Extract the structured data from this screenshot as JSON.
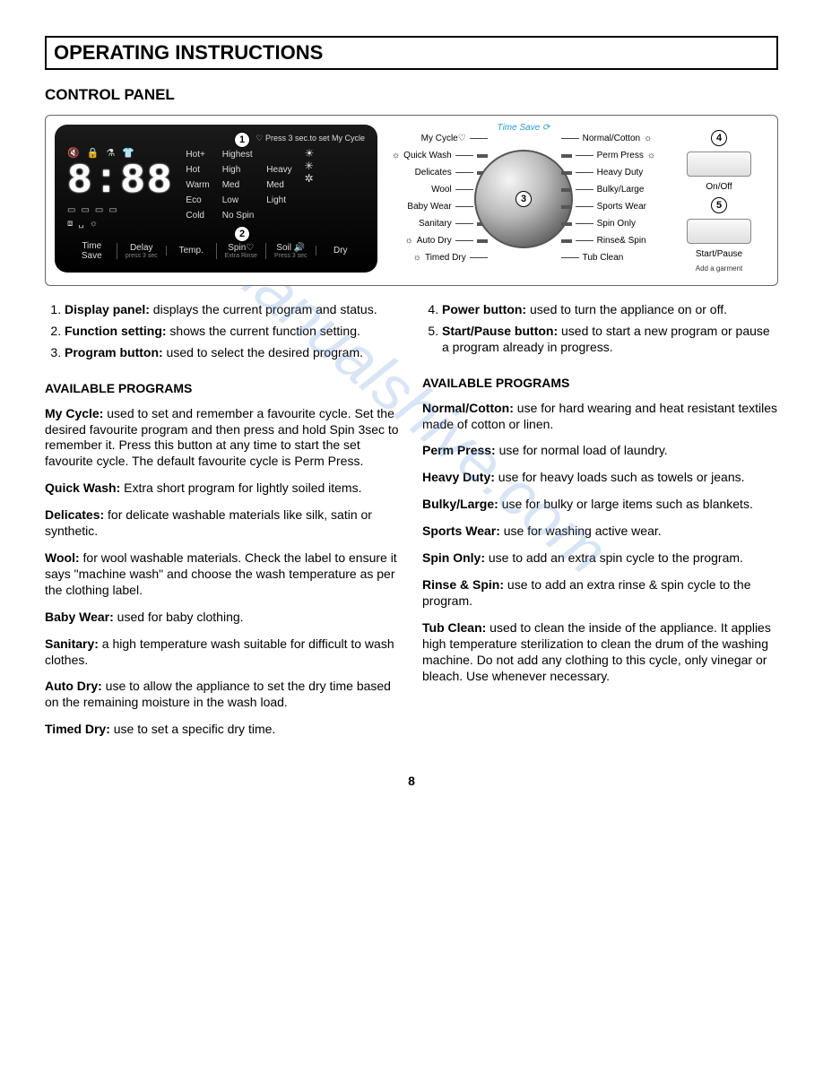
{
  "header": {
    "title": "OPERATING INSTRUCTIONS"
  },
  "subheading": "CONTROL PANEL",
  "panel": {
    "lcd": {
      "mycycle_hint": "♡ Press 3 sec.to set My Cycle",
      "segments": "8:88",
      "temp_labels": [
        "Hot+",
        "Hot",
        "Warm",
        "Eco",
        "Cold"
      ],
      "spin_labels": [
        "Highest",
        "High",
        "Med",
        "Low",
        "No Spin"
      ],
      "soil_labels": [
        "Heavy",
        "Med",
        "Light"
      ],
      "bottom": {
        "time_save": "Time Save",
        "delay": "Delay",
        "temp": "Temp.",
        "spin": "Spin♡",
        "soil": "Soil 🔊",
        "dry": "Dry",
        "press3_1": "press 3 sec",
        "extra_rinse": "Extra\nRinse",
        "press3_2": "Press 3 sec"
      }
    },
    "dial": {
      "timesave": "Time Save",
      "left": [
        "My Cycle♡",
        "Quick Wash",
        "Delicates",
        "Wool",
        "Baby Wear",
        "Sanitary",
        "Auto Dry",
        "Timed Dry"
      ],
      "right": [
        "Normal/Cotton",
        "Perm Press",
        "Heavy Duty",
        "Bulky/Large",
        "Sports Wear",
        "Spin Only",
        "Rinse& Spin",
        "Tub Clean"
      ],
      "callout3": "3"
    },
    "buttons": {
      "callout4": "4",
      "onoff": "On/Off",
      "callout5": "5",
      "startpause": "Start/Pause",
      "startpause_sub": "Add a garment"
    }
  },
  "numbered": {
    "n1_label": "Display panel:",
    "n1_text": " displays the current program and status.",
    "n2_label": "Function setting:",
    "n2_text": " shows the current function setting.",
    "n3_label": "Program button:",
    "n3_text": " used to select the desired program.",
    "n4_label": "Power button:",
    "n4_text": " used to turn the appliance on or off.",
    "n5_label": "Start/Pause button:",
    "n5_text": " used to start a new program or pause a program already in progress."
  },
  "programs_left": {
    "heading": "AVAILABLE PROGRAMS",
    "items": [
      {
        "label": "My Cycle:",
        "text": " used to set and remember a favourite cycle. Set the desired favourite program and then press and hold Spin 3sec to remember it. Press this button at any time to start the set favourite cycle. The default favourite cycle is Perm Press."
      },
      {
        "label": "Quick Wash:",
        "text": " Extra short program for lightly soiled items."
      },
      {
        "label": "Delicates:",
        "text": " for delicate washable materials like silk, satin or synthetic."
      },
      {
        "label": "Wool:",
        "text": " for wool washable materials. Check the label to ensure it says \"machine wash\" and choose the wash temperature as per the clothing label."
      },
      {
        "label": "Baby Wear:",
        "text": " used for baby clothing."
      },
      {
        "label": "Sanitary:",
        "text": " a high temperature wash suitable for difficult to wash clothes."
      },
      {
        "label": "Auto Dry:",
        "text": " use to allow the appliance to set the dry time based on the remaining moisture in the wash load."
      },
      {
        "label": "Timed Dry:",
        "text": " use to set a specific dry time."
      }
    ]
  },
  "programs_right": {
    "heading": "AVAILABLE PROGRAMS",
    "items": [
      {
        "label": "Normal/Cotton:",
        "text": " use for hard wearing and heat resistant textiles made of cotton or linen."
      },
      {
        "label": "Perm Press:",
        "text": " use for normal load of laundry."
      },
      {
        "label": "Heavy Duty:",
        "text": " use for heavy loads such as towels or jeans."
      },
      {
        "label": "Bulky/Large:",
        "text": " use for bulky or large items such as blankets."
      },
      {
        "label": "Sports Wear:",
        "text": " use for washing active wear."
      },
      {
        "label": "Spin Only:",
        "text": " use to add an extra spin cycle to the program."
      },
      {
        "label": "Rinse & Spin:",
        "text": " use to add an extra rinse & spin cycle to the program."
      },
      {
        "label": "Tub Clean:",
        "text": " used to clean the inside of the appliance. It applies high temperature sterilization to clean the drum of the washing machine. Do not add any clothing to this cycle, only vinegar or bleach. Use whenever necessary."
      }
    ]
  },
  "watermark": "manualshive.com",
  "page_number": "8"
}
